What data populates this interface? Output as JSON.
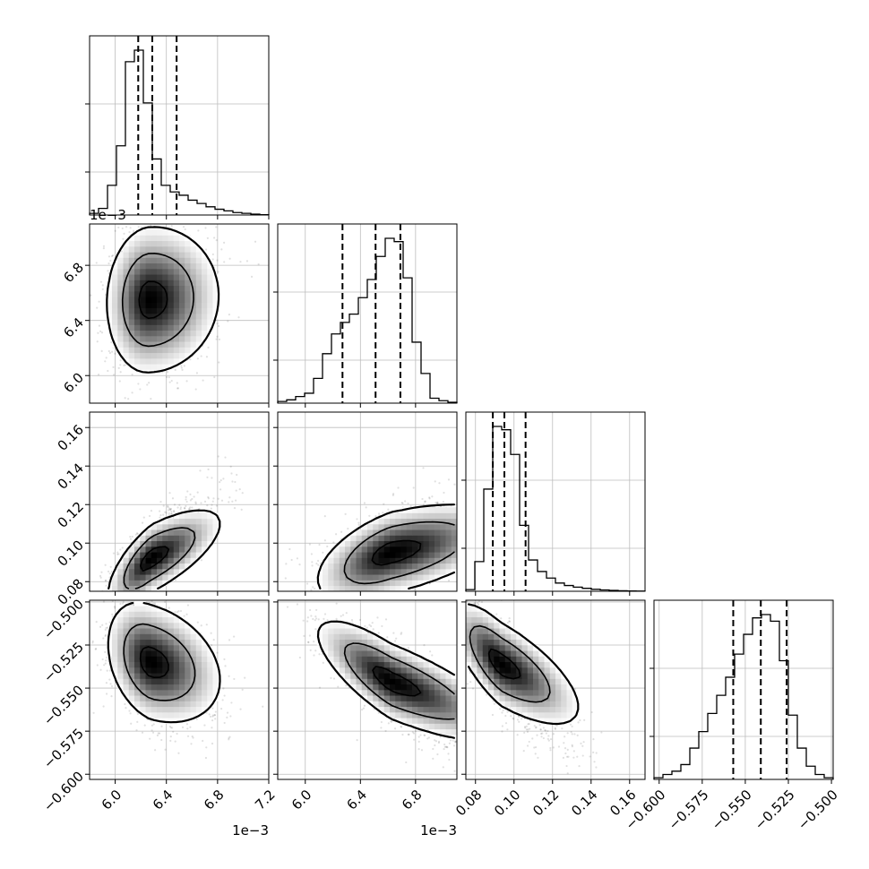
{
  "chart_data": {
    "type": "scatter",
    "kind": "corner-plot",
    "n_params": 4,
    "grid": true,
    "offset_labels": [
      "1e−3",
      "1e−3",
      "1e−3"
    ],
    "params": [
      {
        "range": [
          5.8,
          7.2
        ],
        "ticks": [
          6.0,
          6.4,
          6.8,
          7.2
        ],
        "tick_labels": [
          "6.0",
          "6.4",
          "6.8",
          "7.2"
        ],
        "quantiles": [
          6.18,
          6.29,
          6.48
        ],
        "mode": 6.29,
        "sd": 0.12
      },
      {
        "range": [
          5.8,
          7.1
        ],
        "ticks": [
          6.0,
          6.4,
          6.8
        ],
        "tick_labels": [
          "6.0",
          "6.4",
          "6.8"
        ],
        "quantiles": [
          6.27,
          6.51,
          6.69
        ],
        "mode": 6.56,
        "sd": 0.19
      },
      {
        "range": [
          0.075,
          0.168
        ],
        "ticks": [
          0.08,
          0.1,
          0.12,
          0.14,
          0.16
        ],
        "tick_labels": [
          "0.08",
          "0.10",
          "0.12",
          "0.14",
          "0.16"
        ],
        "quantiles": [
          0.089,
          0.095,
          0.106
        ],
        "mode": 0.093,
        "sd": 0.009
      },
      {
        "range": [
          -0.603,
          -0.499
        ],
        "ticks": [
          -0.6,
          -0.575,
          -0.55,
          -0.525,
          -0.5
        ],
        "tick_labels": [
          "−0.600",
          "−0.575",
          "−0.550",
          "−0.525",
          "−0.500"
        ],
        "quantiles": [
          -0.557,
          -0.541,
          -0.526
        ],
        "mode": -0.541,
        "sd": 0.0125
      }
    ],
    "histograms": [
      {
        "param": 0,
        "bins": 20,
        "heights": [
          0.01,
          0.04,
          0.18,
          0.42,
          0.93,
          1.0,
          0.68,
          0.34,
          0.18,
          0.14,
          0.12,
          0.09,
          0.07,
          0.05,
          0.035,
          0.025,
          0.015,
          0.01,
          0.005,
          0.002
        ]
      },
      {
        "param": 1,
        "bins": 20,
        "heights": [
          0.01,
          0.02,
          0.04,
          0.06,
          0.15,
          0.3,
          0.42,
          0.49,
          0.54,
          0.64,
          0.75,
          0.89,
          1.0,
          0.98,
          0.76,
          0.37,
          0.18,
          0.03,
          0.015,
          0.005
        ]
      },
      {
        "param": 2,
        "bins": 20,
        "heights": [
          0.01,
          0.18,
          0.62,
          1.0,
          0.98,
          0.83,
          0.4,
          0.19,
          0.12,
          0.08,
          0.05,
          0.035,
          0.025,
          0.018,
          0.012,
          0.008,
          0.005,
          0.003,
          0.002,
          0.001
        ]
      },
      {
        "param": 3,
        "bins": 20,
        "heights": [
          0.01,
          0.03,
          0.05,
          0.09,
          0.19,
          0.29,
          0.4,
          0.51,
          0.62,
          0.76,
          0.88,
          0.98,
          1.0,
          0.96,
          0.72,
          0.39,
          0.19,
          0.08,
          0.03,
          0.01
        ]
      }
    ],
    "pairs": [
      {
        "x": 0,
        "y": 1,
        "corr": 0.05,
        "mode": [
          6.27,
          6.55
        ],
        "contour_levels": [
          0.14,
          0.45,
          0.88
        ]
      },
      {
        "x": 0,
        "y": 2,
        "corr": 0.72,
        "mode": [
          6.28,
          0.092
        ],
        "contour_levels": [
          0.14,
          0.45,
          0.88
        ]
      },
      {
        "x": 1,
        "y": 2,
        "corr": 0.55,
        "mode": [
          6.62,
          0.095
        ],
        "contour_levels": [
          0.14,
          0.45,
          0.88
        ]
      },
      {
        "x": 0,
        "y": 3,
        "corr": -0.3,
        "mode": [
          6.28,
          -0.535
        ],
        "contour_levels": [
          0.14,
          0.45,
          0.88
        ]
      },
      {
        "x": 1,
        "y": 3,
        "corr": -0.78,
        "mode": [
          6.62,
          -0.546
        ],
        "contour_levels": [
          0.14,
          0.45,
          0.88
        ]
      },
      {
        "x": 2,
        "y": 3,
        "corr": -0.72,
        "mode": [
          0.093,
          -0.536
        ],
        "contour_levels": [
          0.14,
          0.45,
          0.88
        ]
      }
    ]
  }
}
